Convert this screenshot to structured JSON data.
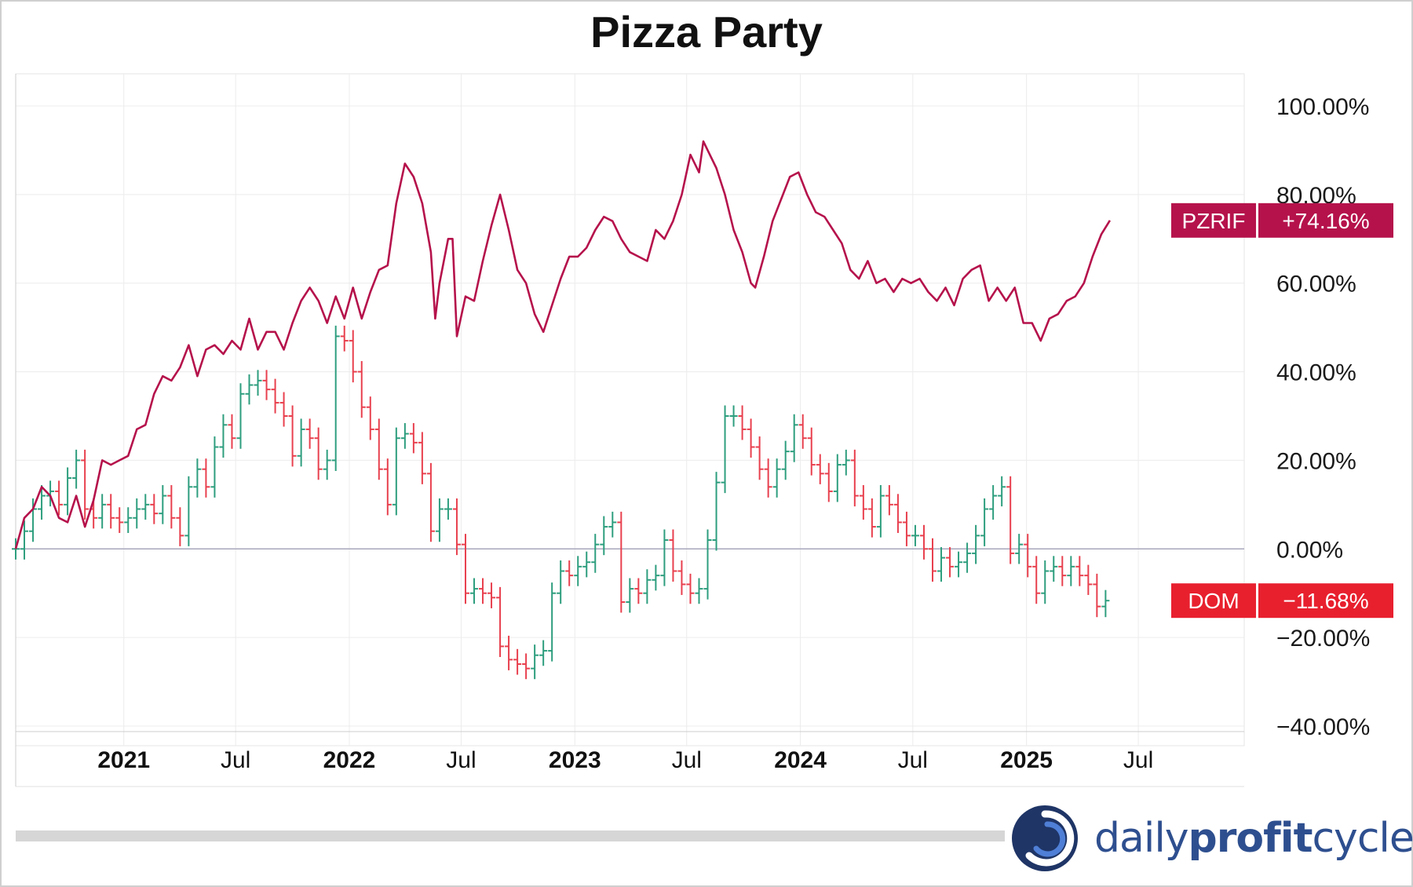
{
  "title": "Pizza Party",
  "brand": {
    "part1": "daily",
    "part2": "profit",
    "part3": "cycle",
    "color": "#2e4f8f"
  },
  "chart_data": {
    "type": "line",
    "title": "Pizza Party",
    "xlabel": "",
    "ylabel": "",
    "x_range": [
      "2020-07-10",
      "2025-08-08"
    ],
    "ylim": [
      -40,
      100
    ],
    "grid": true,
    "y_ticks": [
      "100.00%",
      "80.00%",
      "60.00%",
      "40.00%",
      "20.00%",
      "0.00%",
      "−20.00%",
      "−40.00%"
    ],
    "y_tick_values": [
      100,
      80,
      60,
      40,
      20,
      0,
      -20,
      -40
    ],
    "x_ticks": [
      {
        "label": "2021",
        "date": "2021-01-01",
        "bold": true
      },
      {
        "label": "Jul",
        "date": "2021-07-01",
        "bold": false
      },
      {
        "label": "2022",
        "date": "2022-01-01",
        "bold": true
      },
      {
        "label": "Jul",
        "date": "2022-07-01",
        "bold": false
      },
      {
        "label": "2023",
        "date": "2023-01-01",
        "bold": true
      },
      {
        "label": "Jul",
        "date": "2023-07-01",
        "bold": false
      },
      {
        "label": "2024",
        "date": "2024-01-01",
        "bold": true
      },
      {
        "label": "Jul",
        "date": "2024-07-01",
        "bold": false
      },
      {
        "label": "2025",
        "date": "2025-01-01",
        "bold": true
      },
      {
        "label": "Jul",
        "date": "2025-07-01",
        "bold": false
      }
    ],
    "series": [
      {
        "name": "PZRIF",
        "style": "line",
        "color": "#b5124b",
        "last_label": "+74.16%",
        "points": [
          [
            "2020-07-10",
            0
          ],
          [
            "2020-07-24",
            7
          ],
          [
            "2020-08-07",
            9
          ],
          [
            "2020-08-21",
            14
          ],
          [
            "2020-09-04",
            12
          ],
          [
            "2020-09-18",
            7
          ],
          [
            "2020-10-02",
            6
          ],
          [
            "2020-10-16",
            12
          ],
          [
            "2020-10-30",
            5
          ],
          [
            "2020-11-13",
            11
          ],
          [
            "2020-11-27",
            20
          ],
          [
            "2020-12-11",
            19
          ],
          [
            "2020-12-25",
            20
          ],
          [
            "2021-01-08",
            21
          ],
          [
            "2021-01-22",
            27
          ],
          [
            "2021-02-05",
            28
          ],
          [
            "2021-02-19",
            35
          ],
          [
            "2021-03-05",
            39
          ],
          [
            "2021-03-19",
            38
          ],
          [
            "2021-04-02",
            41
          ],
          [
            "2021-04-16",
            46
          ],
          [
            "2021-04-30",
            39
          ],
          [
            "2021-05-14",
            45
          ],
          [
            "2021-05-28",
            46
          ],
          [
            "2021-06-11",
            44
          ],
          [
            "2021-06-25",
            47
          ],
          [
            "2021-07-09",
            45
          ],
          [
            "2021-07-23",
            52
          ],
          [
            "2021-08-06",
            45
          ],
          [
            "2021-08-20",
            49
          ],
          [
            "2021-09-03",
            49
          ],
          [
            "2021-09-17",
            45
          ],
          [
            "2021-10-01",
            51
          ],
          [
            "2021-10-15",
            56
          ],
          [
            "2021-10-29",
            59
          ],
          [
            "2021-11-12",
            56
          ],
          [
            "2021-11-26",
            51
          ],
          [
            "2021-12-10",
            57
          ],
          [
            "2021-12-24",
            52
          ],
          [
            "2022-01-07",
            59
          ],
          [
            "2022-01-21",
            52
          ],
          [
            "2022-02-04",
            58
          ],
          [
            "2022-02-18",
            63
          ],
          [
            "2022-03-04",
            64
          ],
          [
            "2022-03-18",
            78
          ],
          [
            "2022-04-01",
            87
          ],
          [
            "2022-04-15",
            84
          ],
          [
            "2022-04-29",
            78
          ],
          [
            "2022-05-13",
            67
          ],
          [
            "2022-05-20",
            52
          ],
          [
            "2022-05-27",
            60
          ],
          [
            "2022-06-10",
            70
          ],
          [
            "2022-06-17",
            70
          ],
          [
            "2022-06-24",
            48
          ],
          [
            "2022-07-08",
            57
          ],
          [
            "2022-07-22",
            56
          ],
          [
            "2022-08-05",
            65
          ],
          [
            "2022-08-19",
            73
          ],
          [
            "2022-09-02",
            80
          ],
          [
            "2022-09-16",
            72
          ],
          [
            "2022-09-30",
            63
          ],
          [
            "2022-10-14",
            60
          ],
          [
            "2022-10-28",
            53
          ],
          [
            "2022-11-11",
            49
          ],
          [
            "2022-11-25",
            55
          ],
          [
            "2022-12-09",
            61
          ],
          [
            "2022-12-23",
            66
          ],
          [
            "2023-01-06",
            66
          ],
          [
            "2023-01-20",
            68
          ],
          [
            "2023-02-03",
            72
          ],
          [
            "2023-02-17",
            75
          ],
          [
            "2023-03-03",
            74
          ],
          [
            "2023-03-17",
            70
          ],
          [
            "2023-03-31",
            67
          ],
          [
            "2023-04-14",
            66
          ],
          [
            "2023-04-28",
            65
          ],
          [
            "2023-05-12",
            72
          ],
          [
            "2023-05-26",
            70
          ],
          [
            "2023-06-09",
            74
          ],
          [
            "2023-06-23",
            80
          ],
          [
            "2023-07-07",
            89
          ],
          [
            "2023-07-21",
            85
          ],
          [
            "2023-07-28",
            92
          ],
          [
            "2023-08-04",
            90
          ],
          [
            "2023-08-18",
            86
          ],
          [
            "2023-09-01",
            80
          ],
          [
            "2023-09-15",
            72
          ],
          [
            "2023-09-29",
            67
          ],
          [
            "2023-10-13",
            60
          ],
          [
            "2023-10-20",
            59
          ],
          [
            "2023-11-03",
            66
          ],
          [
            "2023-11-17",
            74
          ],
          [
            "2023-12-01",
            79
          ],
          [
            "2023-12-15",
            84
          ],
          [
            "2023-12-29",
            85
          ],
          [
            "2024-01-12",
            80
          ],
          [
            "2024-01-26",
            76
          ],
          [
            "2024-02-09",
            75
          ],
          [
            "2024-02-23",
            72
          ],
          [
            "2024-03-08",
            69
          ],
          [
            "2024-03-22",
            63
          ],
          [
            "2024-04-05",
            61
          ],
          [
            "2024-04-19",
            65
          ],
          [
            "2024-05-03",
            60
          ],
          [
            "2024-05-17",
            61
          ],
          [
            "2024-05-31",
            58
          ],
          [
            "2024-06-14",
            61
          ],
          [
            "2024-06-28",
            60
          ],
          [
            "2024-07-12",
            61
          ],
          [
            "2024-07-26",
            58
          ],
          [
            "2024-08-09",
            56
          ],
          [
            "2024-08-23",
            59
          ],
          [
            "2024-09-06",
            55
          ],
          [
            "2024-09-20",
            61
          ],
          [
            "2024-10-04",
            63
          ],
          [
            "2024-10-18",
            64
          ],
          [
            "2024-11-01",
            56
          ],
          [
            "2024-11-15",
            59
          ],
          [
            "2024-11-29",
            56
          ],
          [
            "2024-12-13",
            59
          ],
          [
            "2024-12-27",
            51
          ],
          [
            "2025-01-10",
            51
          ],
          [
            "2025-01-24",
            47
          ],
          [
            "2025-02-07",
            52
          ],
          [
            "2025-02-21",
            53
          ],
          [
            "2025-03-07",
            56
          ],
          [
            "2025-03-21",
            57
          ],
          [
            "2025-04-04",
            60
          ],
          [
            "2025-04-18",
            66
          ],
          [
            "2025-05-02",
            71
          ],
          [
            "2025-05-16",
            74.16
          ]
        ]
      },
      {
        "name": "DOM",
        "style": "ohlc",
        "color_up": "#2e9e7e",
        "color_down": "#e8404e",
        "label_color": "#e8202e",
        "last_label": "−11.68%",
        "points": [
          [
            "2020-07-10",
            0
          ],
          [
            "2020-07-24",
            4
          ],
          [
            "2020-08-07",
            9
          ],
          [
            "2020-08-21",
            12
          ],
          [
            "2020-09-04",
            13
          ],
          [
            "2020-09-18",
            10
          ],
          [
            "2020-10-02",
            16
          ],
          [
            "2020-10-16",
            20
          ],
          [
            "2020-10-30",
            9
          ],
          [
            "2020-11-13",
            7
          ],
          [
            "2020-11-27",
            10
          ],
          [
            "2020-12-11",
            7
          ],
          [
            "2020-12-25",
            6
          ],
          [
            "2021-01-08",
            7
          ],
          [
            "2021-01-22",
            9
          ],
          [
            "2021-02-05",
            10
          ],
          [
            "2021-02-19",
            8
          ],
          [
            "2021-03-05",
            12
          ],
          [
            "2021-03-19",
            7
          ],
          [
            "2021-04-02",
            3
          ],
          [
            "2021-04-16",
            14
          ],
          [
            "2021-04-30",
            18
          ],
          [
            "2021-05-14",
            14
          ],
          [
            "2021-05-28",
            23
          ],
          [
            "2021-06-11",
            28
          ],
          [
            "2021-06-25",
            25
          ],
          [
            "2021-07-09",
            35
          ],
          [
            "2021-07-23",
            37
          ],
          [
            "2021-08-06",
            38
          ],
          [
            "2021-08-20",
            36
          ],
          [
            "2021-09-03",
            33
          ],
          [
            "2021-09-17",
            30
          ],
          [
            "2021-10-01",
            21
          ],
          [
            "2021-10-15",
            27
          ],
          [
            "2021-10-29",
            25
          ],
          [
            "2021-11-12",
            18
          ],
          [
            "2021-11-26",
            20
          ],
          [
            "2021-12-10",
            48
          ],
          [
            "2021-12-24",
            47
          ],
          [
            "2022-01-07",
            40
          ],
          [
            "2022-01-21",
            32
          ],
          [
            "2022-02-04",
            27
          ],
          [
            "2022-02-18",
            18
          ],
          [
            "2022-03-04",
            10
          ],
          [
            "2022-03-18",
            25
          ],
          [
            "2022-04-01",
            26
          ],
          [
            "2022-04-15",
            24
          ],
          [
            "2022-04-29",
            17
          ],
          [
            "2022-05-13",
            4
          ],
          [
            "2022-05-27",
            9
          ],
          [
            "2022-06-10",
            9
          ],
          [
            "2022-06-24",
            1
          ],
          [
            "2022-07-08",
            -10
          ],
          [
            "2022-07-22",
            -9
          ],
          [
            "2022-08-05",
            -10
          ],
          [
            "2022-08-19",
            -11
          ],
          [
            "2022-09-02",
            -22
          ],
          [
            "2022-09-16",
            -25
          ],
          [
            "2022-09-30",
            -26
          ],
          [
            "2022-10-14",
            -27
          ],
          [
            "2022-10-28",
            -24
          ],
          [
            "2022-11-11",
            -23
          ],
          [
            "2022-11-25",
            -10
          ],
          [
            "2022-12-09",
            -5
          ],
          [
            "2022-12-23",
            -6
          ],
          [
            "2023-01-06",
            -4
          ],
          [
            "2023-01-20",
            -3
          ],
          [
            "2023-02-03",
            1
          ],
          [
            "2023-02-17",
            5
          ],
          [
            "2023-03-03",
            6
          ],
          [
            "2023-03-17",
            -12
          ],
          [
            "2023-03-31",
            -9
          ],
          [
            "2023-04-14",
            -10
          ],
          [
            "2023-04-28",
            -7
          ],
          [
            "2023-05-12",
            -6
          ],
          [
            "2023-05-26",
            2
          ],
          [
            "2023-06-09",
            -5
          ],
          [
            "2023-06-23",
            -8
          ],
          [
            "2023-07-07",
            -10
          ],
          [
            "2023-07-21",
            -9
          ],
          [
            "2023-08-04",
            2
          ],
          [
            "2023-08-18",
            15
          ],
          [
            "2023-09-01",
            30
          ],
          [
            "2023-09-15",
            30
          ],
          [
            "2023-09-29",
            27
          ],
          [
            "2023-10-13",
            23
          ],
          [
            "2023-10-27",
            18
          ],
          [
            "2023-11-10",
            14
          ],
          [
            "2023-11-24",
            18
          ],
          [
            "2023-12-08",
            22
          ],
          [
            "2023-12-22",
            28
          ],
          [
            "2024-01-05",
            25
          ],
          [
            "2024-01-19",
            19
          ],
          [
            "2024-02-02",
            17
          ],
          [
            "2024-02-16",
            13
          ],
          [
            "2024-03-01",
            19
          ],
          [
            "2024-03-15",
            20
          ],
          [
            "2024-03-29",
            12
          ],
          [
            "2024-04-12",
            9
          ],
          [
            "2024-04-26",
            5
          ],
          [
            "2024-05-10",
            12
          ],
          [
            "2024-05-24",
            10
          ],
          [
            "2024-06-07",
            6
          ],
          [
            "2024-06-21",
            3
          ],
          [
            "2024-07-05",
            3
          ],
          [
            "2024-07-19",
            0
          ],
          [
            "2024-08-02",
            -5
          ],
          [
            "2024-08-16",
            -2
          ],
          [
            "2024-08-30",
            -4
          ],
          [
            "2024-09-13",
            -3
          ],
          [
            "2024-09-27",
            -1
          ],
          [
            "2024-10-11",
            3
          ],
          [
            "2024-10-25",
            9
          ],
          [
            "2024-11-08",
            12
          ],
          [
            "2024-11-22",
            14
          ],
          [
            "2024-12-06",
            -1
          ],
          [
            "2024-12-20",
            1
          ],
          [
            "2025-01-03",
            -4
          ],
          [
            "2025-01-17",
            -10
          ],
          [
            "2025-01-31",
            -5
          ],
          [
            "2025-02-14",
            -4
          ],
          [
            "2025-02-28",
            -6
          ],
          [
            "2025-03-14",
            -4
          ],
          [
            "2025-03-28",
            -6
          ],
          [
            "2025-04-11",
            -8
          ],
          [
            "2025-04-25",
            -13
          ],
          [
            "2025-05-09",
            -11.68
          ]
        ]
      }
    ]
  }
}
